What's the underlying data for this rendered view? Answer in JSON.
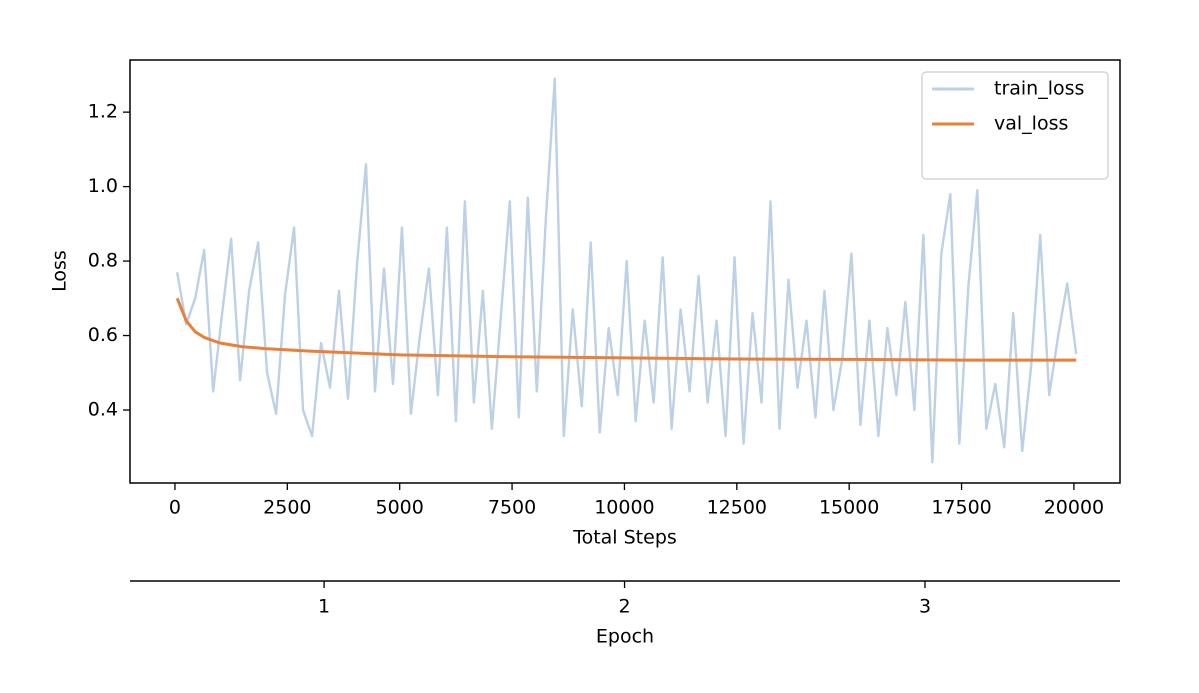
{
  "chart_data": {
    "type": "line",
    "xlabel": "Total Steps",
    "ylabel": "Loss",
    "x2label": "Epoch",
    "xlim": [
      -1000,
      21025
    ],
    "ylim": [
      0.204,
      1.34
    ],
    "x2lim": [
      0.354,
      3.649
    ],
    "xticks": [
      0,
      2500,
      5000,
      7500,
      10000,
      12500,
      15000,
      17500,
      20000
    ],
    "yticks": [
      0.4,
      0.6,
      0.8,
      {
        "value": 1,
        "label": "1.0"
      },
      1.2
    ],
    "x2ticks": [
      1,
      2,
      3
    ],
    "legend": "upper right",
    "series": [
      {
        "name": "train_loss",
        "color": "#bcd0e6",
        "x": [
          50,
          250,
          450,
          650,
          850,
          1050,
          1250,
          1450,
          1650,
          1850,
          2050,
          2250,
          2450,
          2650,
          2850,
          3050,
          3250,
          3450,
          3650,
          3850,
          4050,
          4250,
          4450,
          4650,
          4850,
          5050,
          5250,
          5450,
          5650,
          5850,
          6050,
          6250,
          6450,
          6650,
          6850,
          7050,
          7250,
          7450,
          7650,
          7850,
          8050,
          8250,
          8450,
          8650,
          8850,
          9050,
          9250,
          9450,
          9650,
          9850,
          10050,
          10250,
          10450,
          10650,
          10850,
          11050,
          11250,
          11450,
          11650,
          11850,
          12050,
          12250,
          12450,
          12650,
          12850,
          13050,
          13250,
          13450,
          13650,
          13850,
          14050,
          14250,
          14450,
          14650,
          14850,
          15050,
          15250,
          15450,
          15650,
          15850,
          16050,
          16250,
          16450,
          16650,
          16850,
          17050,
          17250,
          17450,
          17650,
          17850,
          18050,
          18250,
          18450,
          18650,
          18850,
          19050,
          19250,
          19450,
          19650,
          19850,
          20050
        ],
        "values": [
          0.77,
          0.63,
          0.7,
          0.83,
          0.45,
          0.66,
          0.86,
          0.48,
          0.72,
          0.85,
          0.5,
          0.39,
          0.71,
          0.89,
          0.4,
          0.33,
          0.58,
          0.46,
          0.72,
          0.43,
          0.79,
          1.06,
          0.45,
          0.78,
          0.47,
          0.89,
          0.39,
          0.6,
          0.78,
          0.44,
          0.89,
          0.37,
          0.96,
          0.42,
          0.72,
          0.35,
          0.65,
          0.96,
          0.38,
          0.97,
          0.45,
          0.91,
          1.29,
          0.33,
          0.67,
          0.41,
          0.85,
          0.34,
          0.62,
          0.44,
          0.8,
          0.37,
          0.64,
          0.42,
          0.81,
          0.35,
          0.67,
          0.45,
          0.76,
          0.42,
          0.64,
          0.33,
          0.81,
          0.31,
          0.66,
          0.42,
          0.96,
          0.35,
          0.75,
          0.46,
          0.64,
          0.38,
          0.72,
          0.4,
          0.54,
          0.82,
          0.36,
          0.64,
          0.33,
          0.62,
          0.44,
          0.69,
          0.4,
          0.87,
          0.26,
          0.82,
          0.98,
          0.31,
          0.73,
          0.99,
          0.35,
          0.47,
          0.3,
          0.66,
          0.29,
          0.52,
          0.87,
          0.44,
          0.6,
          0.74,
          0.55
        ]
      },
      {
        "name": "val_loss",
        "color": "#e8803a",
        "x": [
          50,
          250,
          450,
          650,
          1000,
          1500,
          2000,
          3000,
          4000,
          5000,
          7500,
          10000,
          12500,
          15000,
          17500,
          20050
        ],
        "values": [
          0.7,
          0.64,
          0.61,
          0.595,
          0.58,
          0.57,
          0.565,
          0.558,
          0.553,
          0.548,
          0.543,
          0.54,
          0.537,
          0.536,
          0.534,
          0.534
        ]
      }
    ]
  }
}
